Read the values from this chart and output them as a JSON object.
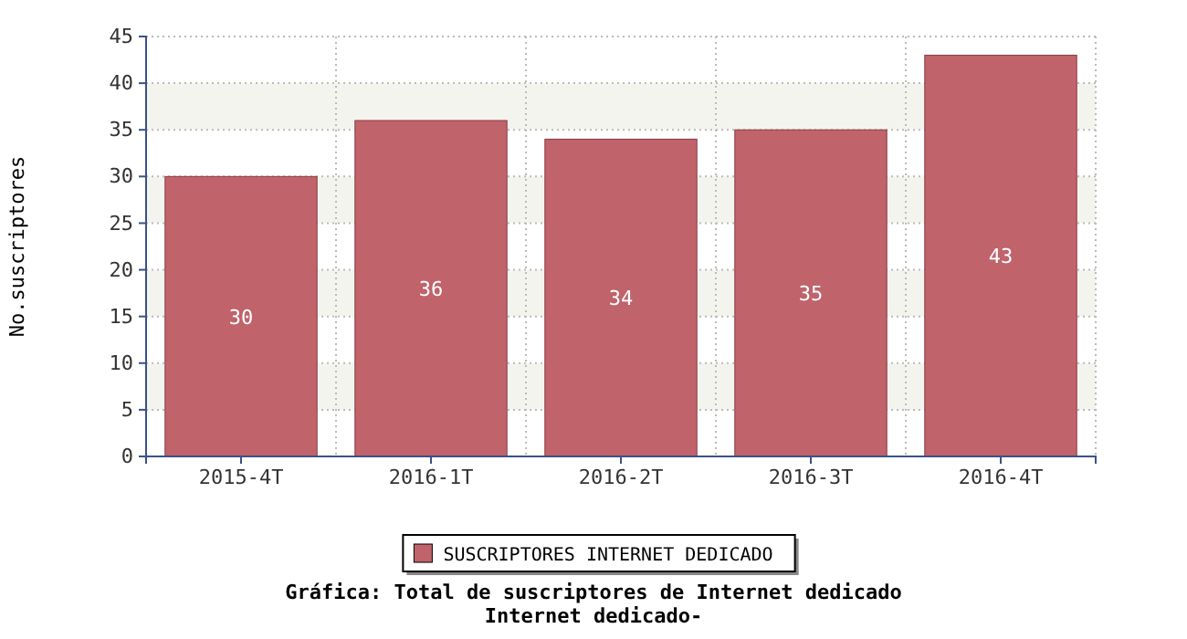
{
  "chart_data": {
    "type": "bar",
    "title": "Gráfica: Total de suscriptores de Internet dedicado",
    "subtitle": "Internet dedicado-",
    "ylabel": "No.suscriptores",
    "categories": [
      "2015-4T",
      "2016-1T",
      "2016-2T",
      "2016-3T",
      "2016-4T"
    ],
    "series": [
      {
        "name": "SUSCRIPTORES INTERNET DEDICADO",
        "color": "#c0636b",
        "values": [
          30,
          36,
          34,
          35,
          43
        ]
      }
    ],
    "ylim": [
      0,
      45
    ],
    "yticks": [
      0,
      5,
      10,
      15,
      20,
      25,
      30,
      35,
      40,
      45
    ],
    "grid": true,
    "legend": "bottom",
    "data_labels": true
  }
}
